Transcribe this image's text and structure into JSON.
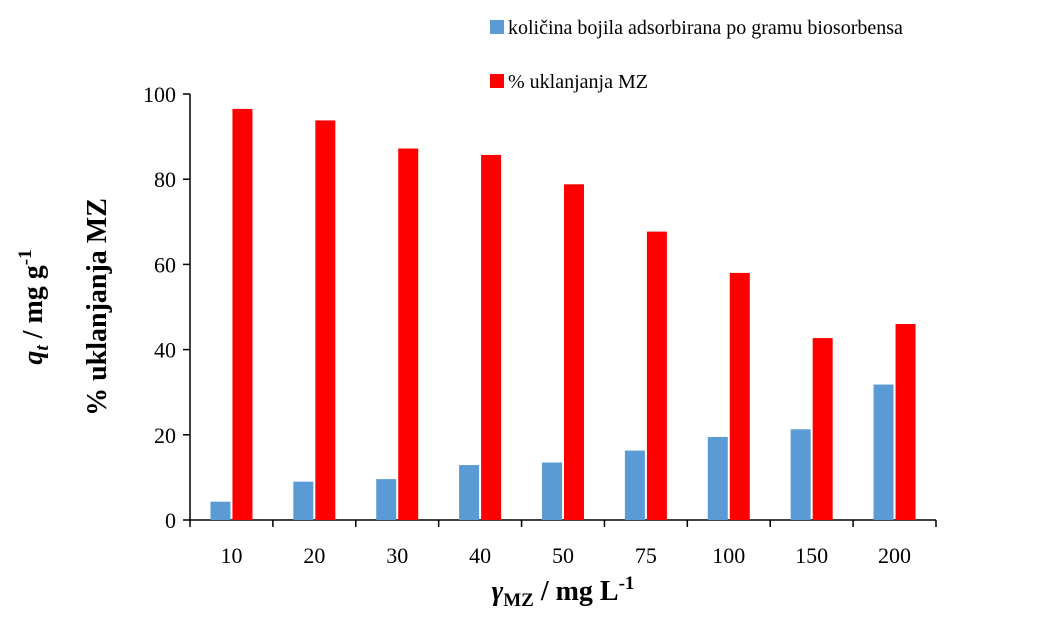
{
  "chart_data": {
    "type": "bar",
    "categories": [
      "10",
      "20",
      "30",
      "40",
      "50",
      "75",
      "100",
      "150",
      "200"
    ],
    "series": [
      {
        "name": "količina bojila adsorbirana po gramu biosorbensa",
        "color": "#5B9BD5",
        "values": [
          4.3,
          9.0,
          9.6,
          12.9,
          13.5,
          16.3,
          19.5,
          21.3,
          31.8
        ]
      },
      {
        "name": "% uklanjanja MZ",
        "color": "#FF0000",
        "values": [
          96.5,
          93.8,
          87.2,
          85.7,
          78.8,
          67.7,
          58.0,
          42.7,
          46.0
        ]
      }
    ],
    "yticks": [
      "0",
      "20",
      "40",
      "60",
      "80",
      "100"
    ],
    "ylim": [
      0,
      100
    ],
    "ylabel_primary": "% uklanjanja  MZ",
    "ylabel_secondary": {
      "symbol": "q",
      "sub": "t",
      "unit": " / mg g",
      "sup": "-1"
    },
    "xlabel": {
      "symbol": "γ",
      "sub": "MZ",
      "unit": " / mg L",
      "sup": "-1"
    },
    "legend_position": "top-right",
    "grid": false
  }
}
